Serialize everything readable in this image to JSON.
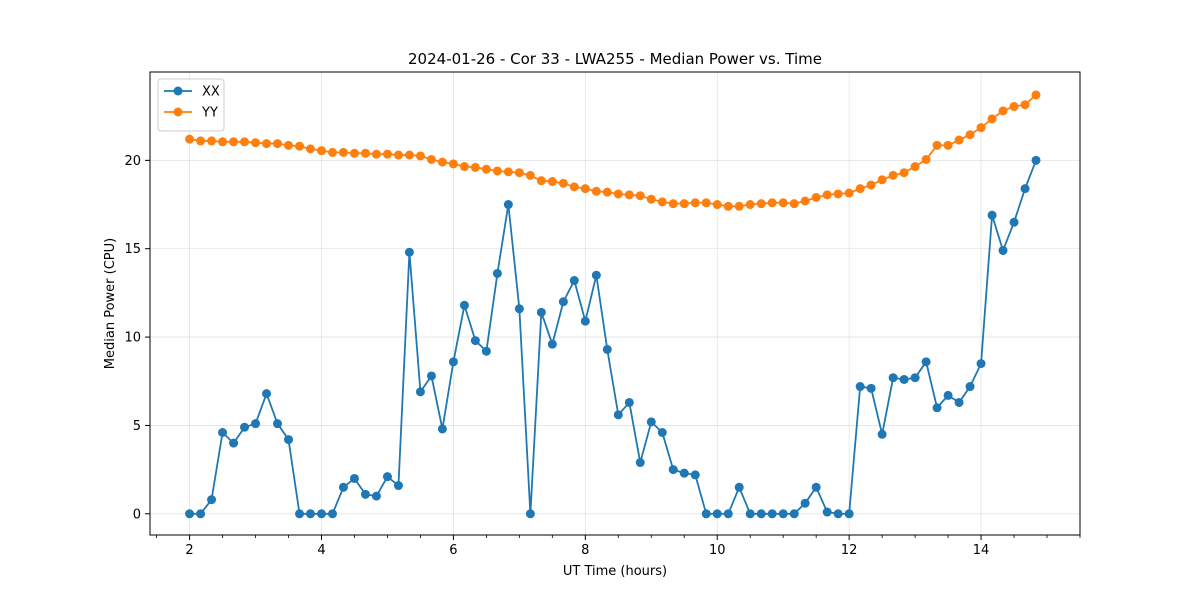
{
  "chart_data": {
    "type": "line",
    "title": "2024-01-26 - Cor 33 - LWA255 - Median Power vs. Time",
    "xlabel": "UT Time (hours)",
    "ylabel": "Median Power (CPU)",
    "xlim": [
      1.4,
      15.5
    ],
    "ylim": [
      -1.2,
      25.0
    ],
    "xticks": [
      2,
      4,
      6,
      8,
      10,
      12,
      14
    ],
    "yticks": [
      0,
      5,
      10,
      15,
      20
    ],
    "grid": true,
    "legend_position": "top-left",
    "x": [
      2.0,
      2.167,
      2.333,
      2.5,
      2.667,
      2.833,
      3.0,
      3.167,
      3.333,
      3.5,
      3.667,
      3.833,
      4.0,
      4.167,
      4.333,
      4.5,
      4.667,
      4.833,
      5.0,
      5.167,
      5.333,
      5.5,
      5.667,
      5.833,
      6.0,
      6.167,
      6.333,
      6.5,
      6.667,
      6.833,
      7.0,
      7.167,
      7.333,
      7.5,
      7.667,
      7.833,
      8.0,
      8.167,
      8.333,
      8.5,
      8.667,
      8.833,
      9.0,
      9.167,
      9.333,
      9.5,
      9.667,
      9.833,
      10.0,
      10.167,
      10.333,
      10.5,
      10.667,
      10.833,
      11.0,
      11.167,
      11.333,
      11.5,
      11.667,
      11.833,
      12.0,
      12.167,
      12.333,
      12.5,
      12.667,
      12.833,
      13.0,
      13.167,
      13.333,
      13.5,
      13.667,
      13.833,
      14.0,
      14.167,
      14.333,
      14.5,
      14.667,
      14.833
    ],
    "series": [
      {
        "name": "XX",
        "color": "#1f77b4",
        "values": [
          0.0,
          0.0,
          0.8,
          4.6,
          4.0,
          4.9,
          5.1,
          6.8,
          5.1,
          4.2,
          0.0,
          0.0,
          0.0,
          0.0,
          1.5,
          2.0,
          1.1,
          1.0,
          2.1,
          1.6,
          14.8,
          6.9,
          7.8,
          4.8,
          8.6,
          11.8,
          9.8,
          9.2,
          13.6,
          17.5,
          11.6,
          0.0,
          11.4,
          9.6,
          12.0,
          13.2,
          10.9,
          13.5,
          9.3,
          5.6,
          6.3,
          2.9,
          5.2,
          4.6,
          2.5,
          2.3,
          2.2,
          0.0,
          0.0,
          0.0,
          1.5,
          0.0,
          0.0,
          0.0,
          0.0,
          0.0,
          0.6,
          1.5,
          0.1,
          0.0,
          0.0,
          7.2,
          7.1,
          4.5,
          7.7,
          7.6,
          7.7,
          8.6,
          6.0,
          6.7,
          6.3,
          7.2,
          8.5,
          16.9,
          14.9,
          16.5,
          18.4,
          20.0
        ]
      },
      {
        "name": "YY",
        "color": "#ff7f0e",
        "values": [
          21.2,
          21.1,
          21.1,
          21.05,
          21.05,
          21.05,
          21.0,
          20.95,
          20.95,
          20.85,
          20.8,
          20.65,
          20.55,
          20.45,
          20.45,
          20.4,
          20.4,
          20.35,
          20.35,
          20.3,
          20.3,
          20.25,
          20.05,
          19.9,
          19.8,
          19.65,
          19.6,
          19.5,
          19.4,
          19.35,
          19.3,
          19.15,
          18.85,
          18.8,
          18.7,
          18.5,
          18.4,
          18.25,
          18.2,
          18.1,
          18.05,
          18.0,
          17.8,
          17.65,
          17.55,
          17.55,
          17.6,
          17.6,
          17.5,
          17.4,
          17.4,
          17.5,
          17.55,
          17.6,
          17.6,
          17.55,
          17.7,
          17.9,
          18.05,
          18.1,
          18.15,
          18.4,
          18.6,
          18.9,
          19.15,
          19.3,
          19.65,
          20.05,
          20.85,
          20.85,
          21.15,
          21.45,
          21.85,
          22.35,
          22.8,
          23.05,
          23.15,
          23.7
        ]
      }
    ]
  }
}
